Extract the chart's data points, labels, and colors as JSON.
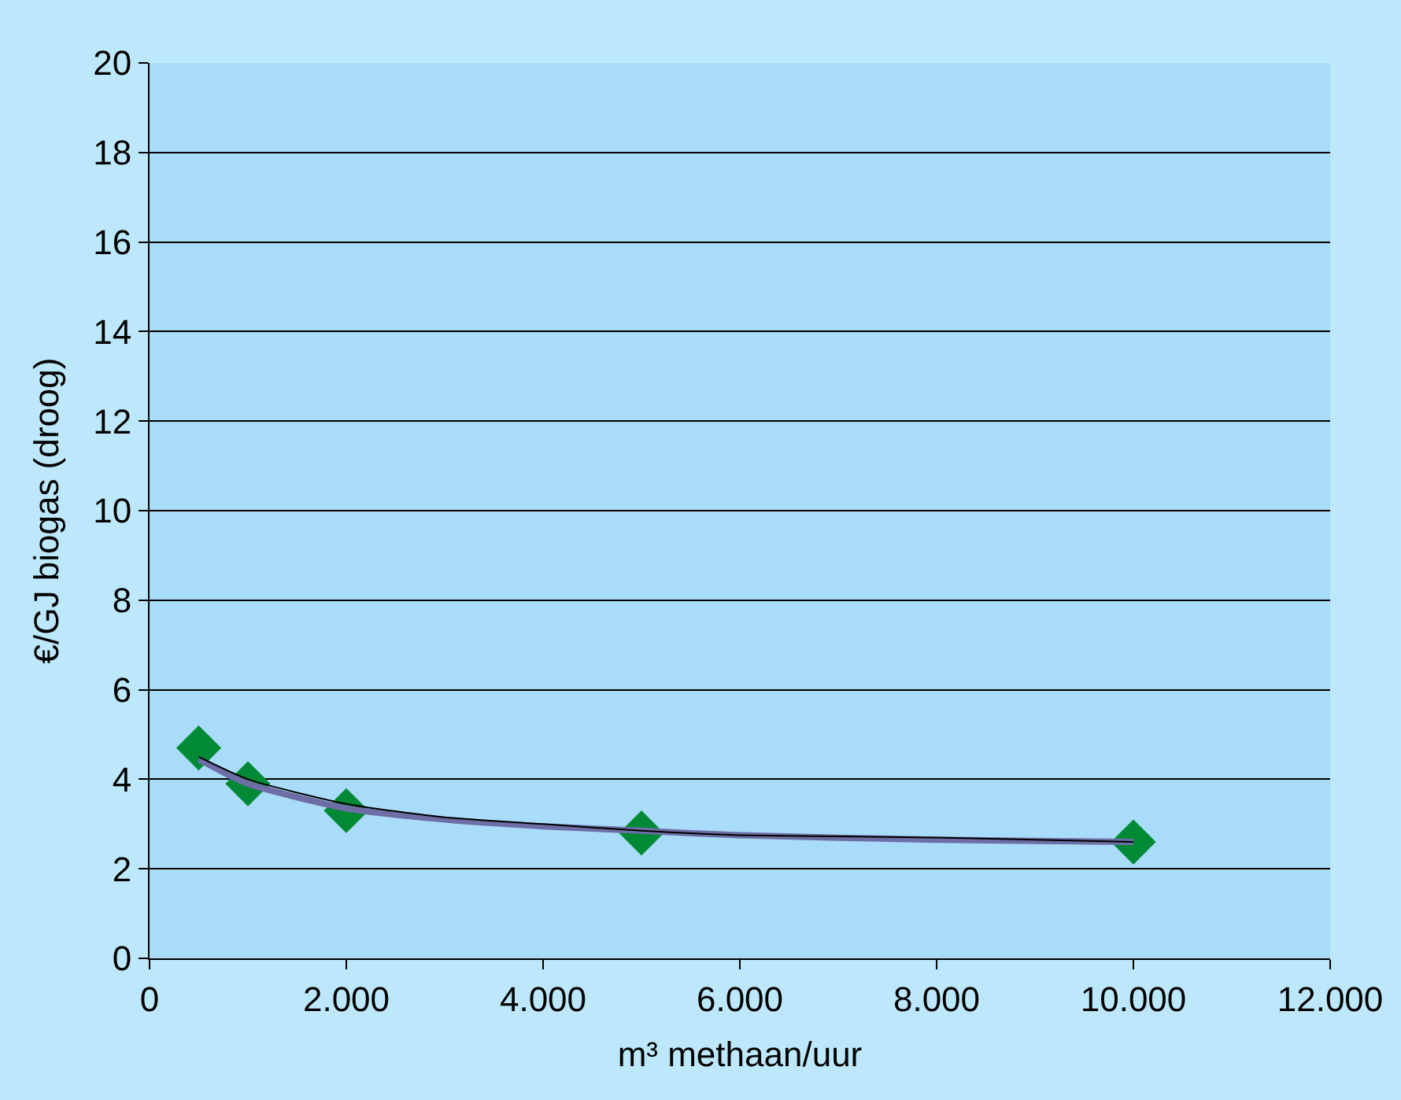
{
  "chart_data": {
    "type": "line",
    "xlabel": "m³ methaan/uur",
    "ylabel": "€/GJ biogas (droog)",
    "x": [
      500,
      1000,
      2000,
      5000,
      10000
    ],
    "series": [
      {
        "marker": "none",
        "color": "#6e6ea6",
        "x": [
          500,
          1000,
          2000,
          3000,
          4000,
          5000,
          6000,
          8000,
          10000
        ],
        "values": [
          4.45,
          3.9,
          3.35,
          3.1,
          2.95,
          2.85,
          2.75,
          2.65,
          2.6
        ]
      },
      {
        "marker": "none",
        "color": "#000000",
        "x": [
          500,
          1000,
          2000,
          3000,
          4000,
          5000,
          6000,
          8000,
          10000
        ],
        "values": [
          4.5,
          4.0,
          3.45,
          3.15,
          3.0,
          2.85,
          2.75,
          2.7,
          2.6
        ]
      },
      {
        "type": "scatter",
        "marker": "diamond",
        "color": "#008a36",
        "values": [
          4.7,
          3.9,
          3.3,
          2.8,
          2.6
        ]
      }
    ],
    "grid": "y",
    "legend": false,
    "xlim": [
      0,
      12000
    ],
    "xticks": [
      0,
      {
        "value": 2000,
        "label": "2.000"
      },
      {
        "value": 4000,
        "label": "4.000"
      },
      {
        "value": 6000,
        "label": "6.000"
      },
      {
        "value": 8000,
        "label": "8.000"
      },
      {
        "value": 10000,
        "label": "10.000"
      },
      {
        "value": 12000,
        "label": "12.000"
      }
    ],
    "ylim": [
      0,
      20
    ],
    "yticks": [
      0,
      2,
      4,
      6,
      8,
      10,
      12,
      14,
      16,
      18,
      20
    ]
  }
}
